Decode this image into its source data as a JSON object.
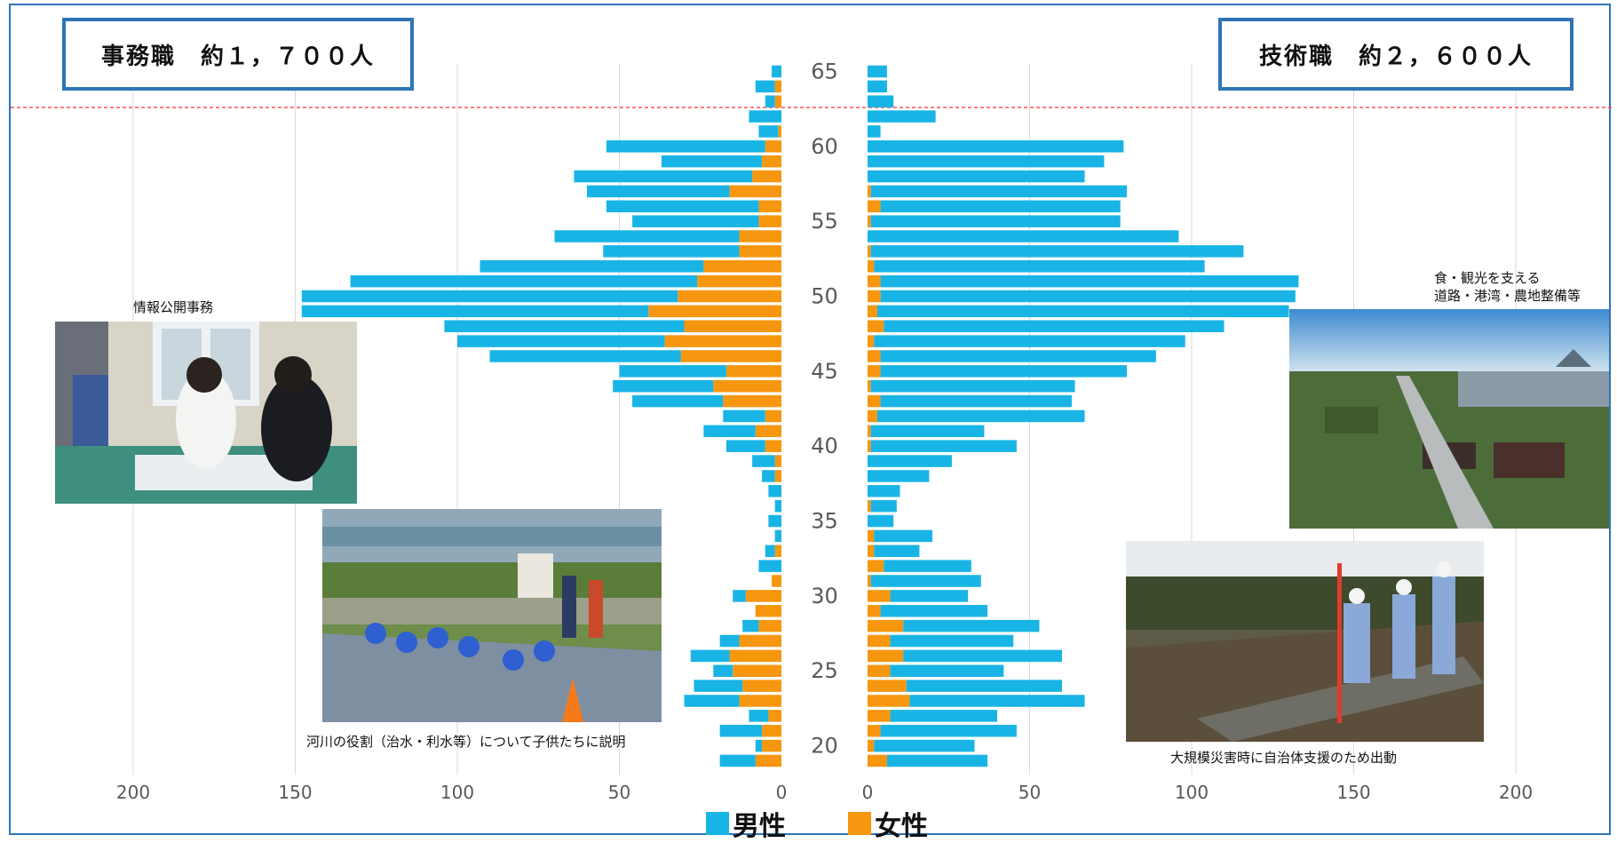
{
  "titles": {
    "left": "事務職　約１，７００人",
    "right": "技術職　約２，６００人"
  },
  "colors": {
    "male": "#19b4e6",
    "female": "#f7960f",
    "frame": "#2e75b6",
    "retire_line": "#ff5050"
  },
  "legend": {
    "male": "男性",
    "female": "女性"
  },
  "captions": {
    "photo1": "情報公開事務",
    "photo2": "河川の役割（治水・利水等）について子供たちに説明",
    "photo3_line1": "食・観光を支える",
    "photo3_line2": "道路・港湾・農地整備等",
    "photo4": "大規模災害時に自治体支援のため出動"
  },
  "chart_data": [
    {
      "type": "bar",
      "name": "事務職",
      "orientation": "horizontal-population-pyramid",
      "stacked": true,
      "ages": [
        65,
        64,
        63,
        62,
        61,
        60,
        59,
        58,
        57,
        56,
        55,
        54,
        53,
        52,
        51,
        50,
        49,
        48,
        47,
        46,
        45,
        44,
        43,
        42,
        41,
        40,
        39,
        38,
        37,
        36,
        35,
        34,
        33,
        32,
        31,
        30,
        29,
        28,
        27,
        26,
        25,
        24,
        23,
        22,
        21,
        20,
        19
      ],
      "series": [
        {
          "name": "女性",
          "values": [
            0,
            2,
            2,
            0,
            1,
            5,
            6,
            9,
            16,
            7,
            7,
            13,
            13,
            24,
            26,
            32,
            41,
            30,
            36,
            31,
            17,
            21,
            18,
            5,
            8,
            5,
            2,
            2,
            0,
            0,
            0,
            0,
            2,
            0,
            3,
            11,
            8,
            7,
            13,
            16,
            15,
            12,
            13,
            4,
            6,
            6,
            8
          ]
        },
        {
          "name": "男性",
          "values": [
            3,
            6,
            3,
            10,
            6,
            49,
            31,
            55,
            44,
            47,
            39,
            57,
            42,
            69,
            107,
            116,
            107,
            74,
            64,
            59,
            33,
            31,
            28,
            13,
            16,
            12,
            7,
            4,
            4,
            2,
            4,
            2,
            3,
            7,
            0,
            4,
            0,
            5,
            6,
            12,
            6,
            15,
            17,
            6,
            13,
            2,
            11
          ]
        }
      ],
      "x_ticks": [
        200,
        150,
        100,
        50,
        0
      ],
      "xlim": [
        0,
        200
      ]
    },
    {
      "type": "bar",
      "name": "技術職",
      "orientation": "horizontal-population-pyramid",
      "stacked": true,
      "ages": [
        65,
        64,
        63,
        62,
        61,
        60,
        59,
        58,
        57,
        56,
        55,
        54,
        53,
        52,
        51,
        50,
        49,
        48,
        47,
        46,
        45,
        44,
        43,
        42,
        41,
        40,
        39,
        38,
        37,
        36,
        35,
        34,
        33,
        32,
        31,
        30,
        29,
        28,
        27,
        26,
        25,
        24,
        23,
        22,
        21,
        20,
        19
      ],
      "series": [
        {
          "name": "女性",
          "values": [
            0,
            0,
            0,
            0,
            0,
            0,
            0,
            0,
            1,
            4,
            1,
            0,
            1,
            2,
            4,
            4,
            3,
            5,
            2,
            4,
            4,
            1,
            4,
            3,
            1,
            1,
            0,
            0,
            0,
            1,
            0,
            2,
            2,
            5,
            1,
            7,
            4,
            11,
            7,
            11,
            7,
            12,
            13,
            7,
            4,
            2,
            6
          ]
        },
        {
          "name": "男性",
          "values": [
            6,
            6,
            8,
            21,
            4,
            79,
            73,
            67,
            79,
            74,
            77,
            96,
            115,
            102,
            129,
            128,
            127,
            105,
            96,
            85,
            76,
            63,
            59,
            64,
            35,
            45,
            26,
            19,
            10,
            8,
            8,
            18,
            14,
            27,
            34,
            24,
            33,
            42,
            38,
            49,
            35,
            48,
            54,
            33,
            42,
            31,
            31
          ]
        }
      ],
      "x_ticks": [
        0,
        50,
        100,
        150,
        200
      ],
      "xlim": [
        0,
        200
      ]
    }
  ],
  "age_ticks": [
    "65",
    "60",
    "55",
    "50",
    "45",
    "40",
    "35",
    "30",
    "25",
    "20"
  ]
}
